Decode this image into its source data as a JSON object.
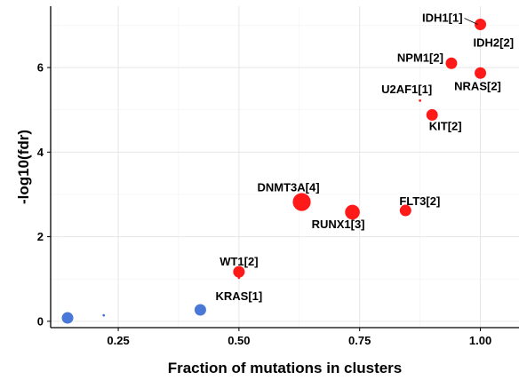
{
  "chart_data": {
    "type": "scatter",
    "title": "",
    "xlabel": "Fraction of mutations in clusters",
    "ylabel": "-log10(fdr)",
    "xlim": [
      0.11,
      1.08
    ],
    "ylim": [
      -0.15,
      7.45
    ],
    "xticks": [
      0.25,
      0.5,
      0.75,
      1.0
    ],
    "xtick_labels": [
      "0.25",
      "0.50",
      "0.75",
      "1.00"
    ],
    "yticks": [
      0,
      2,
      4,
      6
    ],
    "ytick_labels": [
      "0",
      "2",
      "4",
      "6"
    ],
    "grid": true,
    "legend": "none",
    "colors": {
      "significant": "#ff1a1a",
      "not_significant": "#4a78d8"
    },
    "points": [
      {
        "label": "IDH1[1]",
        "x": 1.0,
        "y": 7.02,
        "size": 5,
        "group": "significant"
      },
      {
        "label": "IDH2[2]",
        "x": 1.0,
        "y": 7.0,
        "size": 1,
        "group": "significant"
      },
      {
        "label": "NPM1[2]",
        "x": 0.94,
        "y": 6.1,
        "size": 5,
        "group": "significant"
      },
      {
        "label": "NRAS[2]",
        "x": 1.0,
        "y": 5.87,
        "size": 5,
        "group": "significant"
      },
      {
        "label": "U2AF1[1]",
        "x": 0.875,
        "y": 5.22,
        "size": 1,
        "group": "significant"
      },
      {
        "label": "KIT[2]",
        "x": 0.9,
        "y": 4.88,
        "size": 5,
        "group": "significant"
      },
      {
        "label": "DNMT3A[4]",
        "x": 0.63,
        "y": 2.82,
        "size": 9,
        "group": "significant"
      },
      {
        "label": "RUNX1[3]",
        "x": 0.735,
        "y": 2.58,
        "size": 7,
        "group": "significant"
      },
      {
        "label": "FLT3[2]",
        "x": 0.845,
        "y": 2.62,
        "size": 5,
        "group": "significant"
      },
      {
        "label": "WT1[2]",
        "x": 0.5,
        "y": 1.17,
        "size": 5,
        "group": "significant"
      },
      {
        "label": "KRAS[1]",
        "x": 0.5,
        "y": 1.03,
        "size": 1,
        "group": "significant"
      },
      {
        "label": "",
        "x": 0.145,
        "y": 0.08,
        "size": 5,
        "group": "not_significant"
      },
      {
        "label": "",
        "x": 0.22,
        "y": 0.14,
        "size": 1,
        "group": "not_significant"
      },
      {
        "label": "",
        "x": 0.42,
        "y": 0.27,
        "size": 5,
        "group": "not_significant"
      }
    ]
  }
}
